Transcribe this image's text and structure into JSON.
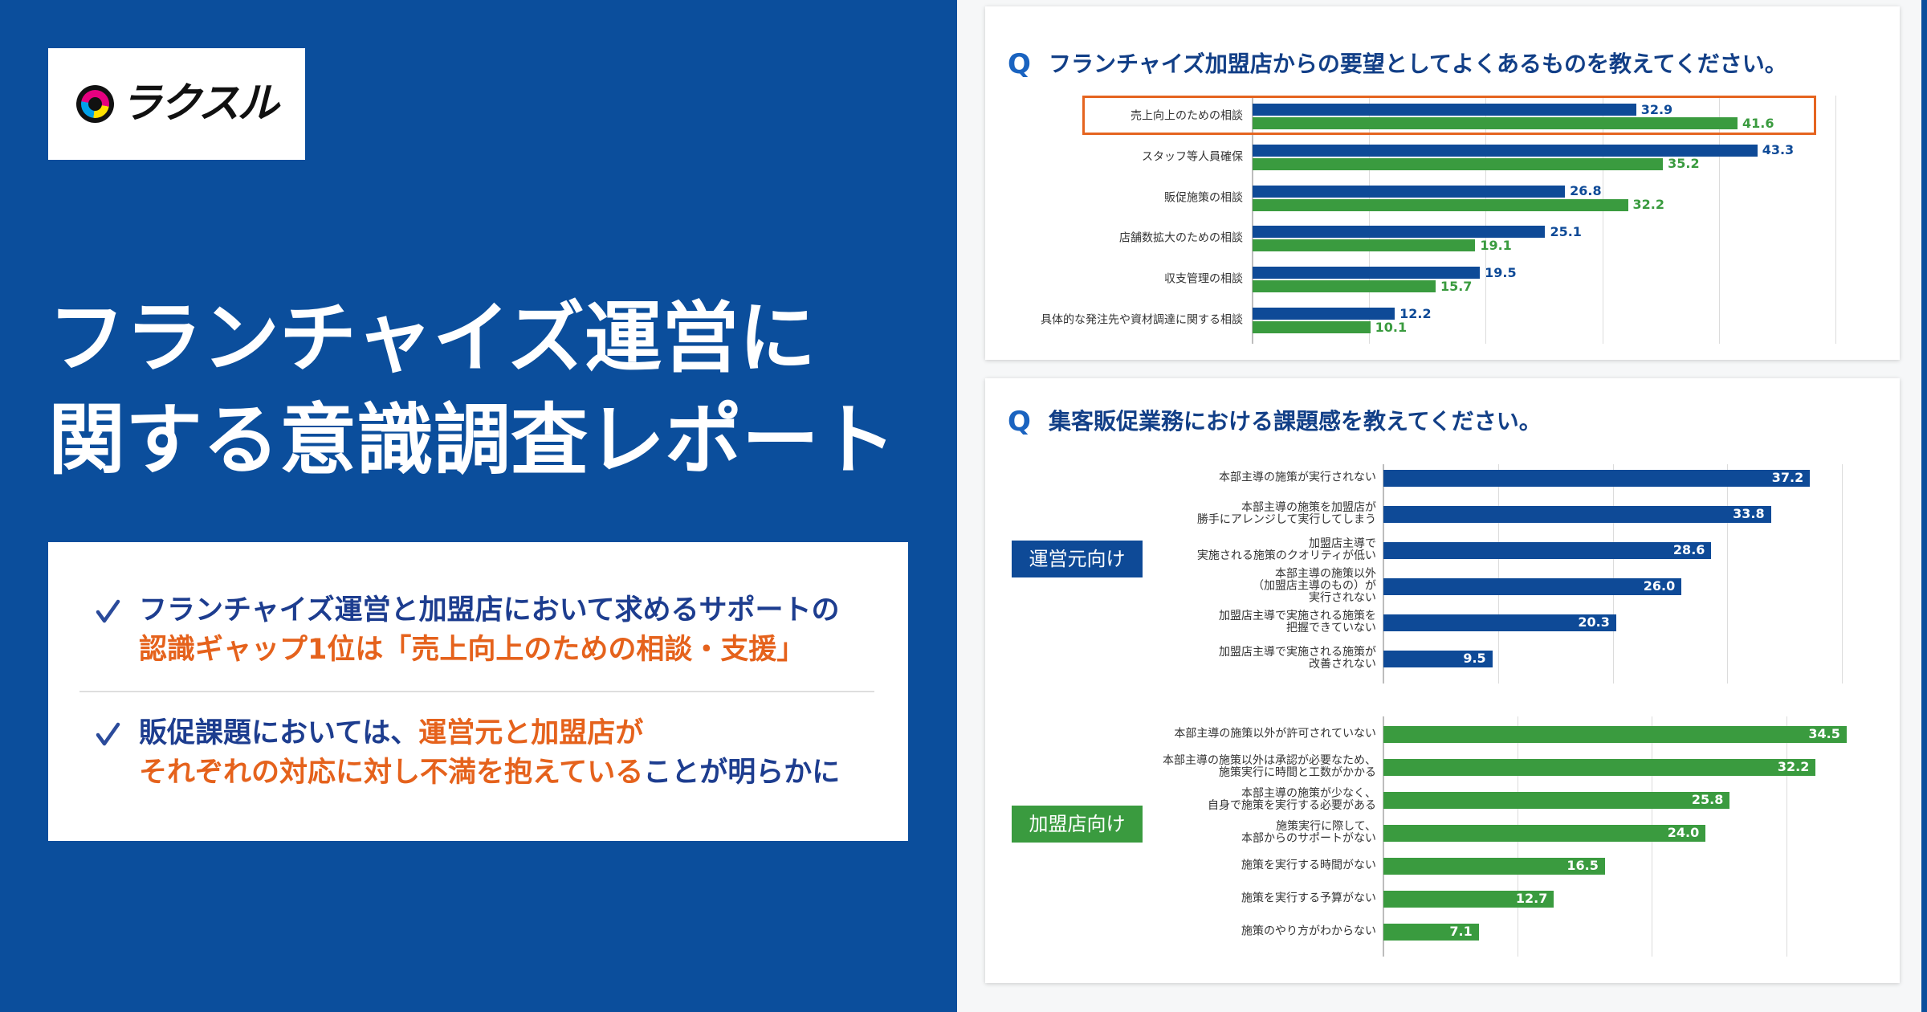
{
  "brand": {
    "logo_text": "ラクスル",
    "logo_icon": "rakusul-logo-icon"
  },
  "headline": {
    "line1": "フランチャイズ運営に",
    "line2": "関する意識調査レポート"
  },
  "summary": {
    "icon": "check-icon",
    "points": [
      {
        "lines": [
          [
            {
              "text": "フランチャイズ運営と加盟店において求めるサポートの",
              "highlight": false
            }
          ],
          [
            {
              "text": "認識ギャップ1位は「売上向上のための相談・支援」",
              "highlight": true
            }
          ]
        ]
      },
      {
        "lines": [
          [
            {
              "text": "販促課題においては、",
              "highlight": false
            },
            {
              "text": "運営元と加盟店が",
              "highlight": true
            }
          ],
          [
            {
              "text": "それぞれの対応に対し不満を抱えている",
              "highlight": true
            },
            {
              "text": "ことが明らかに",
              "highlight": false
            }
          ]
        ]
      }
    ]
  },
  "colors": {
    "left_background": "#0b4e9c",
    "text_navy": "#1d3d8f",
    "text_highlight": "#e5621c",
    "operator_bar": "#0e4a97",
    "franchisee_bar": "#3a9b3f",
    "highlight_frame": "#e5641f",
    "question_marker": "#1a63c0"
  },
  "questions": [
    {
      "marker": "Q",
      "text": "フランチャイズ加盟店からの要望としてよくあるものを教えてください。"
    },
    {
      "marker": "Q",
      "text": "集客販促業務における課題感を教えてください。"
    }
  ],
  "chart_data": [
    {
      "type": "bar",
      "orientation": "horizontal",
      "categories": [
        "売上向上のための相談",
        "スタッフ等人員確保",
        "販促施策の相談",
        "店舗数拡大のための相談",
        "収支管理の相談",
        "具体的な発注先や資材調達に関する相談"
      ],
      "series": [
        {
          "values": [
            32.9,
            43.3,
            26.8,
            25.1,
            19.5,
            12.2
          ],
          "color": "#0e4a97"
        },
        {
          "values": [
            41.6,
            35.2,
            32.2,
            19.1,
            15.7,
            10.1
          ],
          "color": "#3a9b3f"
        }
      ],
      "xlim": [
        0,
        50
      ],
      "grid": true,
      "highlight_index": 0
    },
    {
      "type": "bar",
      "orientation": "horizontal",
      "group_label": "運営元向け",
      "categories": [
        "本部主導の施策が実行されない",
        "本部主導の施策を加盟店が\n勝手にアレンジして実行してしまう",
        "加盟店主導で\n実施される施策のクオリティが低い",
        "本部主導の施策以外\n（加盟店主導のもの）が\n実行されない",
        "加盟店主導で実施される施策を\n把握できていない",
        "加盟店主導で実施される施策が\n改善されない"
      ],
      "values": [
        37.2,
        33.8,
        28.6,
        26.0,
        20.3,
        9.5
      ],
      "color": "#0e4a97",
      "xlim": [
        0,
        40
      ],
      "grid": true
    },
    {
      "type": "bar",
      "orientation": "horizontal",
      "group_label": "加盟店向け",
      "categories": [
        "本部主導の施策以外が許可されていない",
        "本部主導の施策以外は承認が必要なため、\n施策実行に時間と工数がかかる",
        "本部主導の施策が少なく、\n自身で施策を実行する必要がある",
        "施策実行に際して、\n本部からのサポートがない",
        "施策を実行する時間がない",
        "施策を実行する予算がない",
        "施策のやり方がわからない"
      ],
      "values": [
        34.5,
        32.2,
        25.8,
        24.0,
        16.5,
        12.7,
        7.1
      ],
      "color": "#3a9b3f",
      "xlim": [
        0,
        35
      ],
      "grid": true
    }
  ]
}
